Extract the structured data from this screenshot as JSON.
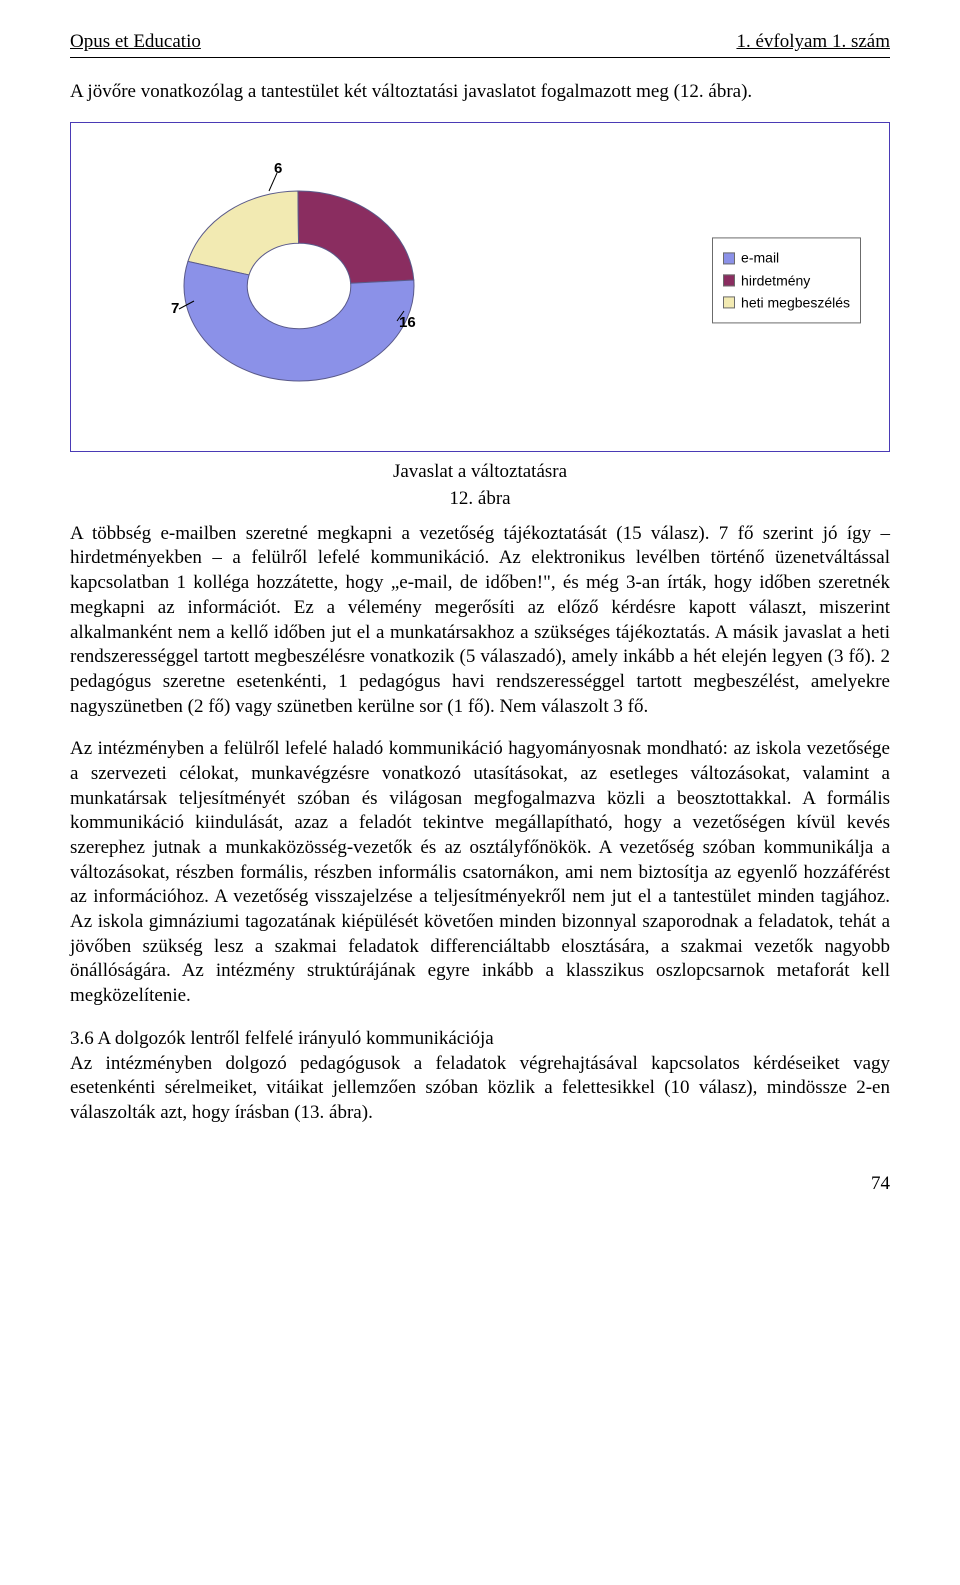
{
  "header": {
    "left": "Opus et Educatio",
    "right": "1. évfolyam 1. szám"
  },
  "intro": "A jövőre vonatkozólag a tantestület két változtatási javaslatot fogalmazott meg (12. ábra).",
  "chart": {
    "type": "donut",
    "values": [
      16,
      7,
      6
    ],
    "labels": [
      "e-mail",
      "hirdetmény",
      "heti megbeszélés"
    ],
    "colors": [
      "#8b91e8",
      "#8a2d60",
      "#f2eab2"
    ],
    "border_color": "#5a5a8a",
    "frame_border": "#4a3ab5",
    "legend_border": "#6b6b6b",
    "inner_radius": 0.45,
    "value_font_size": 15,
    "legend_font_size": 14,
    "data_label_6": "6",
    "data_label_7": "7",
    "data_label_16": "16"
  },
  "caption": {
    "line1": "Javaslat a változtatásra",
    "line2": "12. ábra"
  },
  "para1": "A többség e-mailben szeretné megkapni a vezetőség tájékoztatását (15 válasz). 7 fő szerint jó így – hirdetményekben – a felülről lefelé kommunikáció. Az elektronikus levélben történő üzenetváltással kapcsolatban 1 kolléga hozzátette, hogy „e-mail, de időben!\", és még 3-an írták, hogy időben szeretnék megkapni az információt. Ez a vélemény megerősíti az előző kérdésre kapott választ, miszerint alkalmanként nem a kellő időben jut el a munkatársakhoz a szükséges tájékoztatás. A másik javaslat a heti rendszerességgel tartott megbeszélésre vonatkozik (5 válaszadó), amely inkább a hét elején legyen (3 fő). 2 pedagógus szeretne esetenkénti, 1 pedagógus havi rendszerességgel tartott megbeszélést, amelyekre nagyszünetben (2 fő) vagy szünetben kerülne sor (1 fő). Nem válaszolt 3 fő.",
  "para2": "Az intézményben a felülről lefelé haladó kommunikáció hagyományosnak mondható: az iskola vezetősége a szervezeti célokat, munkavégzésre vonatkozó utasításokat, az esetleges változásokat, valamint a munkatársak teljesítményét szóban és világosan megfogalmazva közli a beosztottakkal. A formális kommunikáció kiindulását, azaz a feladót tekintve megállapítható, hogy a vezetőségen kívül kevés szerephez jutnak a munkaközösség-vezetők és az osztályfőnökök. A vezetőség szóban kommunikálja a változásokat, részben formális, részben informális csatornákon, ami nem biztosítja az egyenlő hozzáférést az információhoz. A vezetőség visszajelzése a teljesítményekről nem jut el a tantestület minden tagjához. Az iskola gimnáziumi tagozatának kiépülését követően minden bizonnyal szaporodnak a feladatok, tehát a jövőben szükség lesz a szakmai feladatok differenciáltabb elosztására, a szakmai vezetők nagyobb önállóságára. Az intézmény struktúrájának egyre inkább a klasszikus oszlopcsarnok metaforát kell megközelítenie.",
  "para3": "3.6 A dolgozók lentről felfelé irányuló kommunikációja\nAz intézményben dolgozó pedagógusok a feladatok végrehajtásával kapcsolatos kérdéseiket vagy esetenkénti sérelmeiket, vitáikat jellemzően szóban közlik a felettesikkel (10 válasz), mindössze 2-en válaszolták azt, hogy írásban (13. ábra).",
  "page_number": "74"
}
